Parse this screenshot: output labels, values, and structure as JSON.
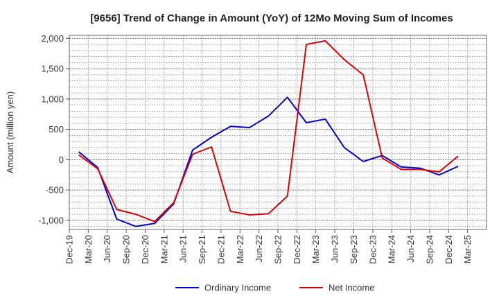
{
  "chart_data": {
    "type": "line",
    "title": "[9656]  Trend of Change in Amount (YoY) of 12Mo Moving Sum of Incomes",
    "xlabel": "",
    "ylabel": "Amount (million yen)",
    "ylim": [
      -1150,
      2050
    ],
    "yticks": [
      -1000,
      -500,
      0,
      500,
      1000,
      1500,
      2000
    ],
    "ytick_labels": [
      "-1,000",
      "-500",
      "0",
      "500",
      "1,000",
      "1,500",
      "2,000"
    ],
    "categories": [
      "Dec-19",
      "Mar-20",
      "Jun-20",
      "Sep-20",
      "Dec-20",
      "Mar-21",
      "Jun-21",
      "Sep-21",
      "Dec-21",
      "Mar-22",
      "Jun-22",
      "Sep-22",
      "Dec-22",
      "Mar-23",
      "Jun-23",
      "Sep-23",
      "Dec-23",
      "Mar-24",
      "Jun-24",
      "Sep-24",
      "Dec-24",
      "Mar-25"
    ],
    "grid": true,
    "legend_position": "bottom",
    "series": [
      {
        "name": "Ordinary Income",
        "color": "#0000dd",
        "values": [
          130,
          -130,
          -980,
          -1100,
          -1050,
          -730,
          160,
          370,
          550,
          530,
          720,
          1030,
          610,
          670,
          200,
          -30,
          70,
          -120,
          -140,
          -250,
          -110,
          null
        ]
      },
      {
        "name": "Net Income",
        "color": "#dd0000",
        "values": [
          80,
          -150,
          -820,
          -900,
          -1020,
          -710,
          90,
          210,
          -850,
          -910,
          -890,
          -600,
          1900,
          1960,
          1650,
          1400,
          30,
          -160,
          -160,
          -200,
          60,
          null
        ]
      }
    ]
  }
}
